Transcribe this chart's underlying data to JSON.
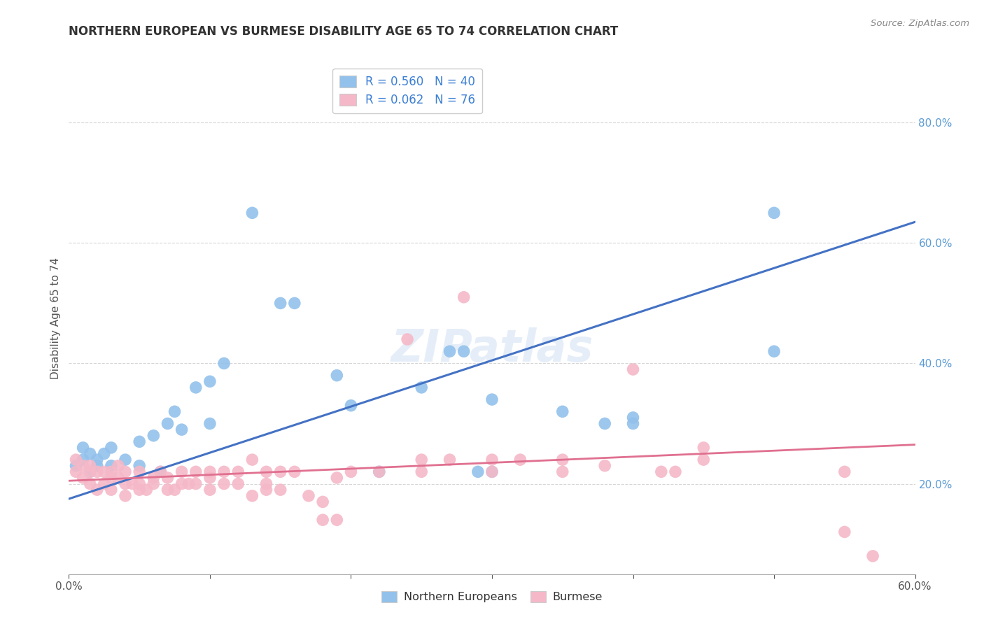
{
  "title": "NORTHERN EUROPEAN VS BURMESE DISABILITY AGE 65 TO 74 CORRELATION CHART",
  "source": "Source: ZipAtlas.com",
  "ylabel": "Disability Age 65 to 74",
  "xlim": [
    0.0,
    0.6
  ],
  "ylim": [
    0.05,
    0.9
  ],
  "x_tick_positions": [
    0.0,
    0.1,
    0.2,
    0.3,
    0.4,
    0.5,
    0.6
  ],
  "x_tick_labels": [
    "0.0%",
    "",
    "",
    "",
    "",
    "",
    "60.0%"
  ],
  "y_ticks_right": [
    0.2,
    0.4,
    0.6,
    0.8
  ],
  "y_tick_labels_right": [
    "20.0%",
    "40.0%",
    "60.0%",
    "80.0%"
  ],
  "legend_r1": "0.560",
  "legend_n1": "40",
  "legend_r2": "0.062",
  "legend_n2": "76",
  "blue_color": "#92c1eb",
  "pink_color": "#f5b8c8",
  "blue_line_color": "#4472c4",
  "pink_line_color": "#e07090",
  "watermark": "ZIPatlas",
  "blue_scatter_x": [
    0.005,
    0.01,
    0.01,
    0.015,
    0.015,
    0.02,
    0.02,
    0.025,
    0.03,
    0.03,
    0.04,
    0.05,
    0.05,
    0.06,
    0.065,
    0.07,
    0.075,
    0.08,
    0.09,
    0.1,
    0.1,
    0.11,
    0.13,
    0.15,
    0.16,
    0.19,
    0.2,
    0.22,
    0.25,
    0.27,
    0.28,
    0.29,
    0.3,
    0.3,
    0.35,
    0.38,
    0.4,
    0.4,
    0.5,
    0.5
  ],
  "blue_scatter_y": [
    0.23,
    0.24,
    0.26,
    0.22,
    0.25,
    0.24,
    0.23,
    0.25,
    0.23,
    0.26,
    0.24,
    0.27,
    0.23,
    0.28,
    0.22,
    0.3,
    0.32,
    0.29,
    0.36,
    0.3,
    0.37,
    0.4,
    0.65,
    0.5,
    0.5,
    0.38,
    0.33,
    0.22,
    0.36,
    0.42,
    0.42,
    0.22,
    0.34,
    0.22,
    0.32,
    0.3,
    0.31,
    0.3,
    0.65,
    0.42
  ],
  "pink_scatter_x": [
    0.005,
    0.005,
    0.01,
    0.01,
    0.015,
    0.015,
    0.015,
    0.02,
    0.02,
    0.025,
    0.025,
    0.03,
    0.03,
    0.03,
    0.035,
    0.035,
    0.04,
    0.04,
    0.04,
    0.045,
    0.05,
    0.05,
    0.05,
    0.055,
    0.06,
    0.06,
    0.065,
    0.07,
    0.07,
    0.075,
    0.08,
    0.08,
    0.085,
    0.09,
    0.09,
    0.1,
    0.1,
    0.1,
    0.11,
    0.11,
    0.12,
    0.12,
    0.13,
    0.13,
    0.14,
    0.14,
    0.14,
    0.15,
    0.15,
    0.16,
    0.17,
    0.18,
    0.18,
    0.19,
    0.19,
    0.2,
    0.22,
    0.24,
    0.25,
    0.25,
    0.27,
    0.28,
    0.3,
    0.3,
    0.32,
    0.35,
    0.35,
    0.38,
    0.4,
    0.42,
    0.43,
    0.45,
    0.45,
    0.55,
    0.55,
    0.57
  ],
  "pink_scatter_y": [
    0.22,
    0.24,
    0.23,
    0.21,
    0.22,
    0.2,
    0.23,
    0.22,
    0.19,
    0.22,
    0.2,
    0.21,
    0.22,
    0.19,
    0.21,
    0.23,
    0.2,
    0.22,
    0.18,
    0.2,
    0.22,
    0.2,
    0.19,
    0.19,
    0.2,
    0.21,
    0.22,
    0.21,
    0.19,
    0.19,
    0.2,
    0.22,
    0.2,
    0.22,
    0.2,
    0.19,
    0.21,
    0.22,
    0.2,
    0.22,
    0.22,
    0.2,
    0.24,
    0.18,
    0.22,
    0.2,
    0.19,
    0.22,
    0.19,
    0.22,
    0.18,
    0.14,
    0.17,
    0.14,
    0.21,
    0.22,
    0.22,
    0.44,
    0.24,
    0.22,
    0.24,
    0.51,
    0.24,
    0.22,
    0.24,
    0.24,
    0.22,
    0.23,
    0.39,
    0.22,
    0.22,
    0.26,
    0.24,
    0.12,
    0.22,
    0.08
  ],
  "blue_line_x": [
    0.0,
    0.6
  ],
  "blue_line_y": [
    0.175,
    0.635
  ],
  "pink_line_x": [
    0.0,
    0.6
  ],
  "pink_line_y": [
    0.205,
    0.265
  ],
  "background_color": "#ffffff",
  "grid_color": "#cccccc",
  "title_color": "#333333",
  "source_color": "#888888"
}
